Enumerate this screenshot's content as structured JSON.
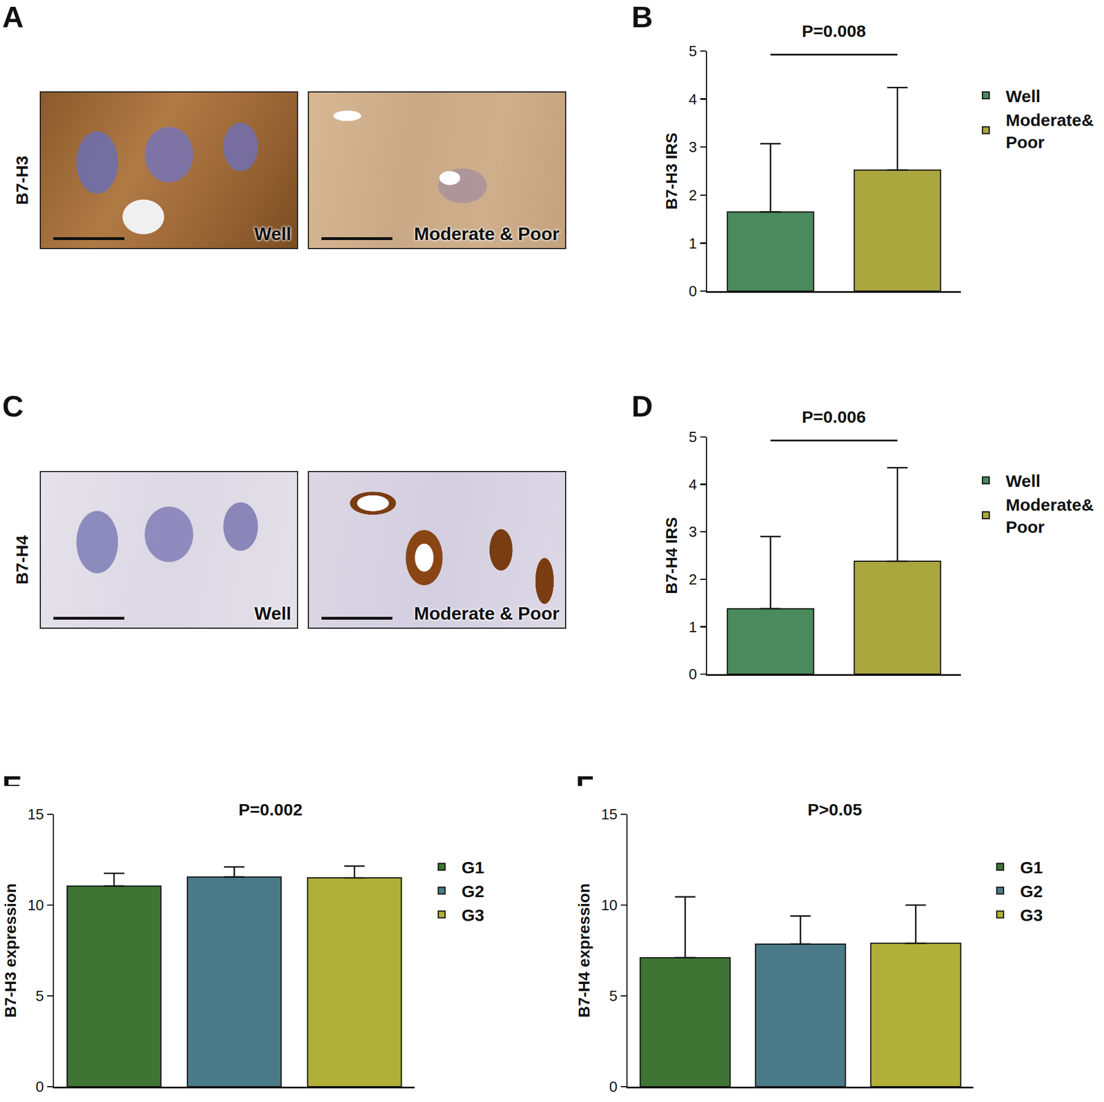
{
  "panel_labels": [
    "A",
    "B",
    "C",
    "D",
    "E",
    "F"
  ],
  "micrographs": [
    {
      "label": "B7-H3",
      "images": [
        "Well",
        "Moderate & Poor"
      ]
    },
    {
      "label": "B7-H4",
      "images": [
        "Well",
        "Moderate & Poor"
      ]
    }
  ],
  "chart_data": [
    {
      "type": "bar",
      "categories": [
        "Well",
        "Moderate& Poor"
      ],
      "values": [
        1.65,
        2.52
      ],
      "errors": [
        1.42,
        1.72
      ],
      "colors": [
        "#4a8a5c",
        "#aba73f"
      ],
      "ylabel": "B7-H3 IRS",
      "ylim": [
        0,
        5
      ],
      "yticks": [
        0,
        1,
        2,
        3,
        4,
        5
      ],
      "annotation": "P=0.008",
      "legend": "right",
      "tick_labels": "y"
    },
    {
      "type": "bar",
      "categories": [
        "Well",
        "Moderate& Poor"
      ],
      "values": [
        1.38,
        2.38
      ],
      "errors": [
        1.52,
        1.97
      ],
      "colors": [
        "#4a8a5c",
        "#aba73f"
      ],
      "ylabel": "B7-H4 IRS",
      "ylim": [
        0,
        5
      ],
      "yticks": [
        0,
        1,
        2,
        3,
        4,
        5
      ],
      "annotation": "P=0.006",
      "legend": "right",
      "tick_labels": "y"
    },
    {
      "type": "bar",
      "categories": [
        "G1",
        "G2",
        "G3"
      ],
      "values": [
        11.05,
        11.55,
        11.5
      ],
      "errors": [
        0.7,
        0.55,
        0.65
      ],
      "colors": [
        "#3f7534",
        "#4a7a87",
        "#b0b038"
      ],
      "ylabel": "B7-H3 expression",
      "ylim": [
        0,
        15
      ],
      "yticks": [
        0,
        5,
        10,
        15
      ],
      "annotation": "P=0.002",
      "legend": "right",
      "tick_labels": "y"
    },
    {
      "type": "bar",
      "categories": [
        "G1",
        "G2",
        "G3"
      ],
      "values": [
        7.1,
        7.85,
        7.9
      ],
      "errors": [
        3.35,
        1.55,
        2.1
      ],
      "colors": [
        "#3f7534",
        "#4a7a87",
        "#b0b038"
      ],
      "ylabel": "B7-H4 expression",
      "ylim": [
        0,
        15
      ],
      "yticks": [
        0,
        5,
        10,
        15
      ],
      "annotation": "P>0.05",
      "legend": "right",
      "tick_labels": "y"
    }
  ]
}
